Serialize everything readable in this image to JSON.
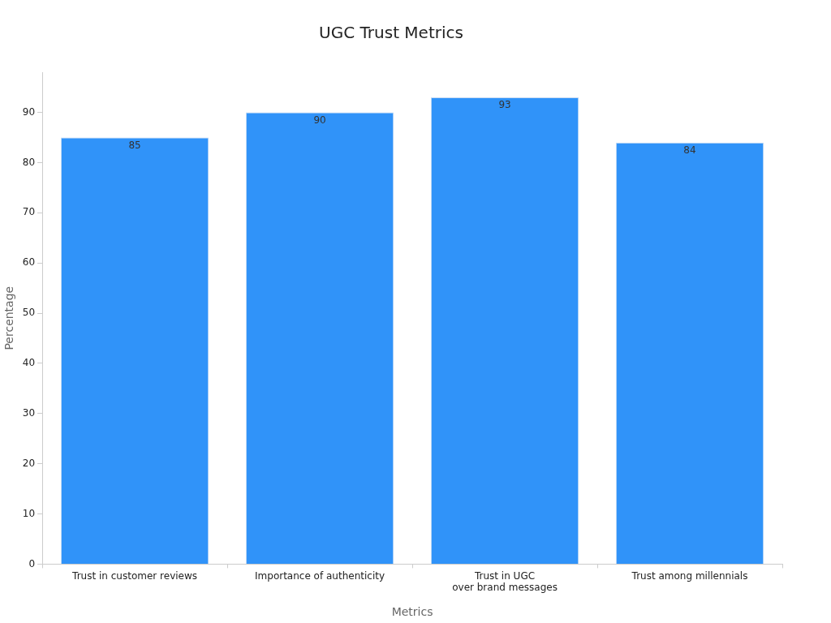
{
  "chart_data": {
    "type": "bar",
    "title": "UGC Trust Metrics",
    "xlabel": "Metrics",
    "ylabel": "Percentage",
    "categories": [
      "Trust in customer reviews",
      "Importance of authenticity",
      "Trust in UGC\nover brand messages",
      "Trust among millennials"
    ],
    "values": [
      85,
      90,
      93,
      84
    ],
    "color": "#3093f9",
    "ylim": [
      0,
      98
    ],
    "yticks": [
      0,
      10,
      20,
      30,
      40,
      50,
      60,
      70,
      80,
      90
    ],
    "grid": false,
    "legend": false,
    "data_labels": true
  }
}
